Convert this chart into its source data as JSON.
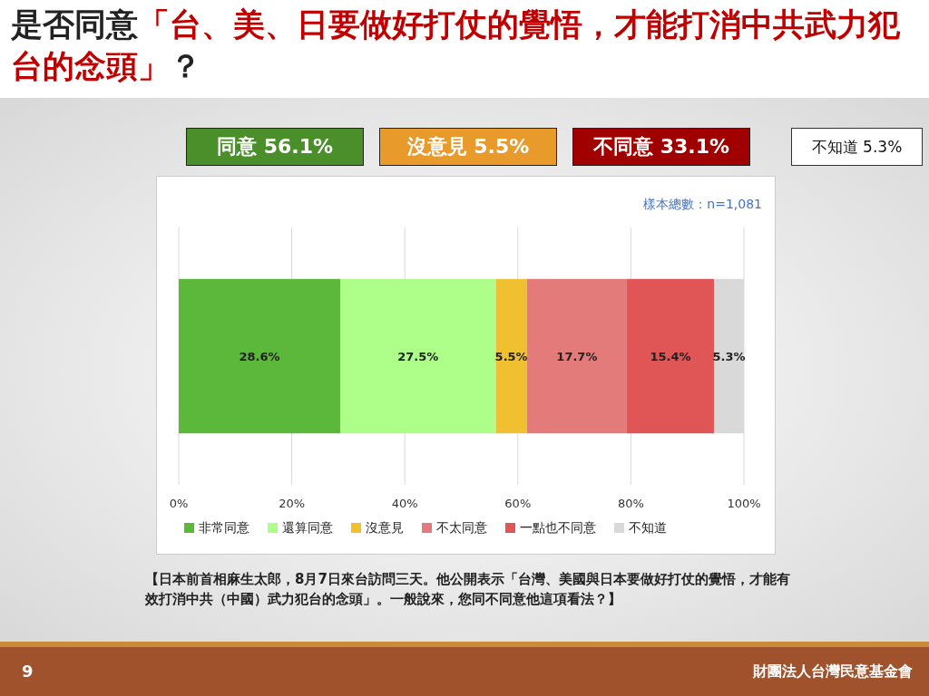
{
  "chart_data": {
    "type": "bar",
    "orientation": "horizontal",
    "stacked": true,
    "title": "是否同意「台、美、日要做好打仗的覺悟，才能打消中共武力犯台的念頭」？",
    "categories": [
      null
    ],
    "series": [
      {
        "name": "非常同意",
        "color": "#5cb83a",
        "values": [
          28.6
        ],
        "value_labels": [
          "28.6%"
        ]
      },
      {
        "name": "還算同意",
        "color": "#adff8a",
        "values": [
          27.5
        ],
        "value_labels": [
          "27.5%"
        ]
      },
      {
        "name": "沒意見",
        "color": "#f0c030",
        "values": [
          5.5
        ],
        "value_labels": [
          "5.5%"
        ]
      },
      {
        "name": "不太同意",
        "color": "#e47b7b",
        "values": [
          17.7
        ],
        "value_labels": [
          "17.7%"
        ]
      },
      {
        "name": "一點也不同意",
        "color": "#e05555",
        "values": [
          15.4
        ],
        "value_labels": [
          "15.4%"
        ]
      },
      {
        "name": "不知道",
        "color": "#d9d9d9",
        "values": [
          5.3
        ],
        "value_labels": [
          "5.3%"
        ]
      }
    ],
    "xlim": [
      0,
      100
    ],
    "xticks": [
      {
        "value": 0,
        "label": "0%"
      },
      {
        "value": 20,
        "label": "20%"
      },
      {
        "value": 40,
        "label": "40%"
      },
      {
        "value": 60,
        "label": "60%"
      },
      {
        "value": 80,
        "label": "80%"
      },
      {
        "value": 100,
        "label": "100%"
      }
    ],
    "grid": "x",
    "legend": "bottom",
    "annotations": [
      "同意 56.1%",
      "沒意見 5.5%",
      "不同意 33.1%",
      "不知道 5.3%",
      "樣本總數：n=1,081",
      "【日本前首相麻生太郎，8月7日來台訪問三天。他公開表示「台灣、美國與日本要做好打仗的覺悟，才能有效打消中共（中國）武力犯台的念頭」。一般說來，您同不同意他這項看法？】",
      "9",
      "財團法人台灣民意基金會"
    ]
  }
}
